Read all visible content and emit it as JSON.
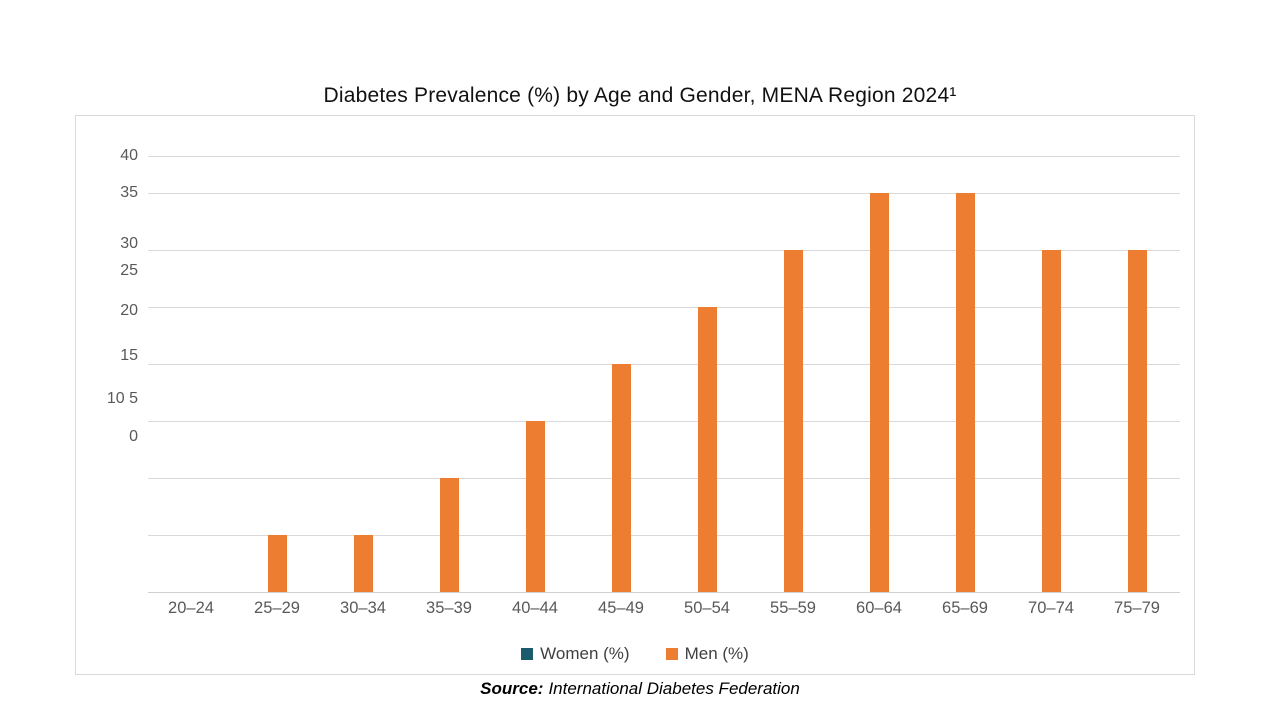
{
  "title": "Diabetes Prevalence (%) by Age and Gender, MENA Region 2024¹",
  "source": {
    "label": "Source:",
    "text": "International Diabetes Federation"
  },
  "legend": [
    {
      "label": "Women (%)",
      "color": "#1C5A6E"
    },
    {
      "label": "Men (%)",
      "color": "#ED7D31"
    }
  ],
  "y_axis_labels": [
    "40",
    "35",
    "30",
    "25",
    "20",
    "15",
    "10 5",
    "0"
  ],
  "chart_data": {
    "type": "bar",
    "title": "Diabetes Prevalence (%) by Age and Gender, MENA Region 2024¹",
    "categories": [
      "20–24",
      "25–29",
      "30–34",
      "35–39",
      "40–44",
      "45–49",
      "50–54",
      "55–59",
      "60–64",
      "65–69",
      "70–74",
      "75–79"
    ],
    "series": [
      {
        "name": "Women (%)",
        "color": "#1C5A6E",
        "values": [
          0,
          0,
          0,
          0,
          0,
          0,
          0,
          0,
          0,
          0,
          0,
          0
        ]
      },
      {
        "name": "Men (%)",
        "color": "#ED7D31",
        "values": [
          0,
          5,
          5,
          10,
          15,
          20,
          25,
          30,
          35,
          35,
          30,
          30
        ]
      }
    ],
    "xlabel": "",
    "ylabel": "",
    "ylim": [
      0,
      40
    ],
    "y_tick_labels_as_shown": [
      "40",
      "35",
      "30",
      "25",
      "20",
      "15",
      "10 5",
      "0"
    ],
    "grid": true,
    "legend_position": "bottom"
  }
}
